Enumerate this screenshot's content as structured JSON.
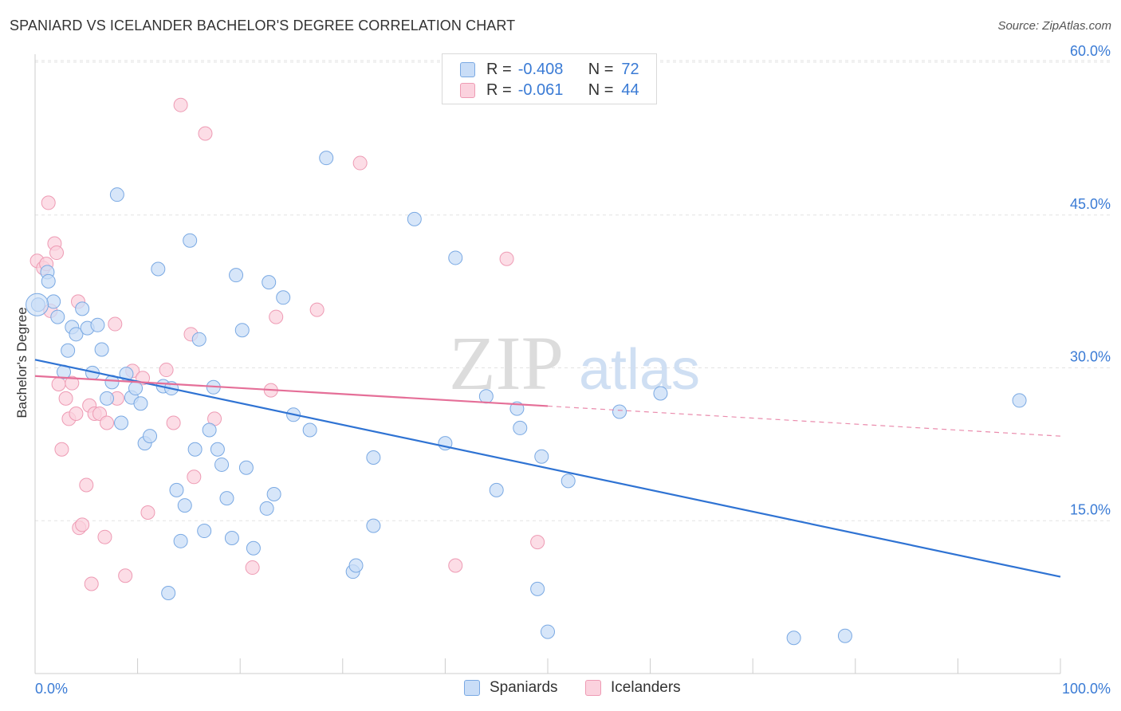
{
  "header": {
    "title": "SPANIARD VS ICELANDER BACHELOR'S DEGREE CORRELATION CHART",
    "source": "Source: ZipAtlas.com"
  },
  "stats": {
    "spaniards": {
      "r_label": "R =",
      "r_value": "-0.408",
      "n_label": "N =",
      "n_value": "72"
    },
    "icelanders": {
      "r_label": "R =",
      "r_value": "-0.061",
      "n_label": "N =",
      "n_value": "44"
    }
  },
  "watermark": {
    "zip": "ZIP",
    "atlas": "atlas"
  },
  "chart_data": {
    "type": "scatter",
    "ylabel": "Bachelor's Degree",
    "xlabel": "",
    "xlim": [
      0,
      100
    ],
    "ylim": [
      0,
      62
    ],
    "x_tick_labels": [
      {
        "value": 0,
        "label": "0.0%"
      },
      {
        "value": 100,
        "label": "100.0%"
      }
    ],
    "y_tick_labels": [
      {
        "value": 15,
        "label": "15.0%"
      },
      {
        "value": 30,
        "label": "30.0%"
      },
      {
        "value": 45,
        "label": "45.0%"
      },
      {
        "value": 60,
        "label": "60.0%"
      }
    ],
    "grid": "horizontal dashed",
    "legend_position": "bottom-center",
    "colors": {
      "spaniards_fill": "#c9ddf7",
      "spaniards_stroke": "#7aa9e3",
      "spaniards_line": "#2f73d3",
      "icelanders_fill": "#fbd2de",
      "icelanders_stroke": "#ee9bb4",
      "icelanders_line": "#e56f98"
    },
    "series": [
      {
        "name": "Spaniards",
        "trend": {
          "x": [
            0,
            100
          ],
          "y": [
            30.8,
            9.5
          ],
          "dashed_from": null
        },
        "points": [
          [
            0.3,
            36.2
          ],
          [
            1.2,
            39.4
          ],
          [
            1.3,
            38.5
          ],
          [
            1.8,
            36.5
          ],
          [
            2.2,
            35.0
          ],
          [
            2.8,
            29.6
          ],
          [
            3.2,
            31.7
          ],
          [
            3.6,
            34.0
          ],
          [
            4.0,
            33.3
          ],
          [
            4.6,
            35.8
          ],
          [
            5.1,
            33.9
          ],
          [
            5.6,
            29.5
          ],
          [
            6.1,
            34.2
          ],
          [
            6.5,
            31.8
          ],
          [
            7.0,
            27.0
          ],
          [
            7.5,
            28.6
          ],
          [
            8.0,
            47.0
          ],
          [
            8.4,
            24.6
          ],
          [
            8.9,
            29.4
          ],
          [
            9.4,
            27.1
          ],
          [
            9.8,
            28.0
          ],
          [
            10.3,
            26.5
          ],
          [
            10.7,
            22.6
          ],
          [
            11.2,
            23.3
          ],
          [
            12.0,
            39.7
          ],
          [
            12.5,
            28.2
          ],
          [
            13.0,
            7.9
          ],
          [
            13.3,
            28.0
          ],
          [
            13.8,
            18.0
          ],
          [
            14.2,
            13.0
          ],
          [
            14.6,
            16.5
          ],
          [
            15.1,
            42.5
          ],
          [
            15.6,
            22.0
          ],
          [
            16.0,
            32.8
          ],
          [
            16.5,
            14.0
          ],
          [
            17.0,
            23.9
          ],
          [
            17.4,
            28.1
          ],
          [
            17.8,
            22.0
          ],
          [
            18.2,
            20.5
          ],
          [
            18.7,
            17.2
          ],
          [
            19.2,
            13.3
          ],
          [
            19.6,
            39.1
          ],
          [
            20.2,
            33.7
          ],
          [
            20.6,
            20.2
          ],
          [
            21.3,
            12.3
          ],
          [
            22.6,
            16.2
          ],
          [
            22.8,
            38.4
          ],
          [
            23.3,
            17.6
          ],
          [
            24.2,
            36.9
          ],
          [
            25.2,
            25.4
          ],
          [
            26.8,
            23.9
          ],
          [
            28.4,
            50.6
          ],
          [
            31.0,
            10.0
          ],
          [
            31.3,
            10.6
          ],
          [
            33.0,
            21.2
          ],
          [
            33.0,
            14.5
          ],
          [
            37.0,
            44.6
          ],
          [
            40.0,
            22.6
          ],
          [
            41.0,
            40.8
          ],
          [
            44.0,
            27.2
          ],
          [
            45.0,
            18.0
          ],
          [
            47.0,
            26.0
          ],
          [
            47.3,
            24.1
          ],
          [
            49.0,
            8.3
          ],
          [
            49.4,
            21.3
          ],
          [
            50.0,
            4.1
          ],
          [
            52.0,
            18.9
          ],
          [
            57.0,
            25.7
          ],
          [
            61.0,
            27.5
          ],
          [
            74.0,
            3.5
          ],
          [
            79.0,
            3.7
          ],
          [
            96.0,
            26.8
          ]
        ]
      },
      {
        "name": "Icelanders",
        "trend": {
          "x": [
            0,
            100
          ],
          "y": [
            29.2,
            23.3
          ],
          "dashed_from": 50
        },
        "points": [
          [
            0.2,
            40.5
          ],
          [
            0.8,
            39.8
          ],
          [
            1.1,
            40.2
          ],
          [
            1.3,
            46.2
          ],
          [
            1.5,
            35.6
          ],
          [
            1.9,
            42.2
          ],
          [
            2.1,
            41.3
          ],
          [
            2.3,
            28.4
          ],
          [
            2.6,
            22.0
          ],
          [
            3.0,
            27.0
          ],
          [
            3.3,
            25.0
          ],
          [
            3.6,
            28.5
          ],
          [
            4.0,
            25.5
          ],
          [
            4.2,
            36.5
          ],
          [
            4.3,
            14.3
          ],
          [
            4.6,
            14.6
          ],
          [
            5.0,
            18.5
          ],
          [
            5.3,
            26.3
          ],
          [
            5.5,
            8.8
          ],
          [
            5.8,
            25.5
          ],
          [
            6.3,
            25.5
          ],
          [
            6.8,
            13.4
          ],
          [
            7.0,
            24.6
          ],
          [
            7.8,
            34.3
          ],
          [
            8.0,
            27.0
          ],
          [
            8.8,
            9.6
          ],
          [
            9.5,
            29.7
          ],
          [
            10.5,
            29.0
          ],
          [
            11.0,
            15.8
          ],
          [
            12.8,
            29.8
          ],
          [
            13.5,
            24.6
          ],
          [
            14.2,
            55.8
          ],
          [
            15.2,
            33.3
          ],
          [
            15.5,
            19.3
          ],
          [
            16.6,
            53.0
          ],
          [
            17.5,
            25.0
          ],
          [
            21.2,
            10.4
          ],
          [
            23.0,
            27.8
          ],
          [
            23.5,
            35.0
          ],
          [
            27.5,
            35.7
          ],
          [
            31.7,
            50.1
          ],
          [
            41.0,
            10.6
          ],
          [
            46.0,
            40.7
          ],
          [
            49.0,
            12.9
          ]
        ]
      }
    ]
  },
  "legend": {
    "spaniards": "Spaniards",
    "icelanders": "Icelanders"
  }
}
